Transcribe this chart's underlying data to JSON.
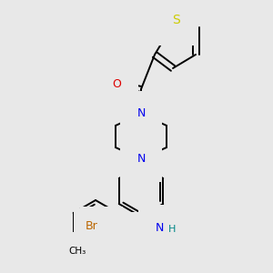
{
  "bg_color": "#e8e8e8",
  "atom_colors": {
    "C": "#000000",
    "N": "#0000ee",
    "O": "#dd0000",
    "S": "#cccc00",
    "Br": "#bb6600",
    "H": "#008888",
    "bond": "#000000"
  },
  "line_width": 1.4,
  "font_size": 9,
  "fig_size": [
    3.0,
    3.0
  ],
  "dpi": 100
}
